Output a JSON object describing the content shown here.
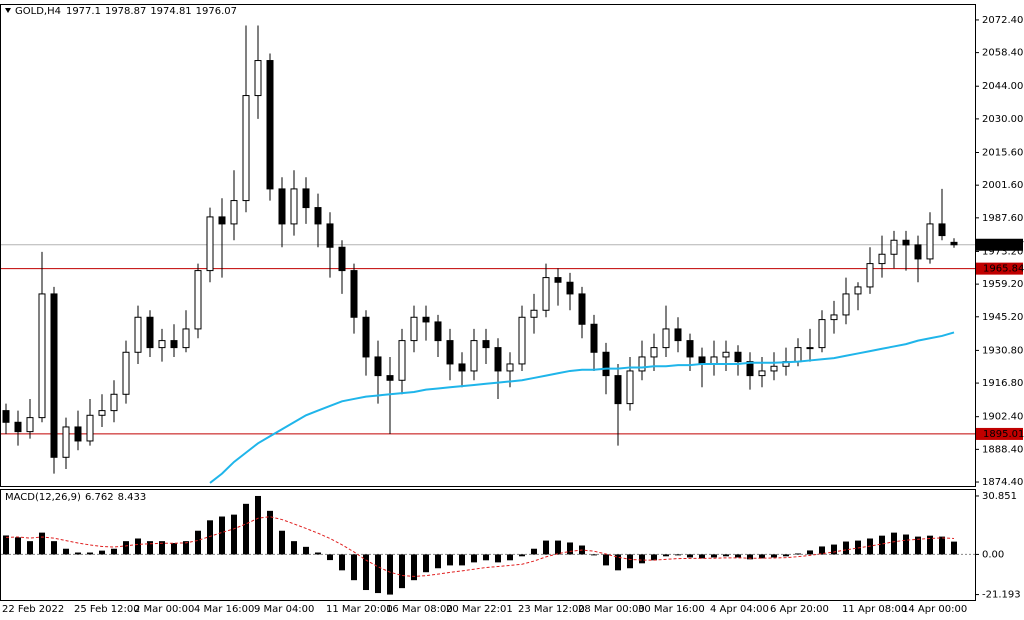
{
  "chart_data": [
    {
      "type": "candlestick",
      "title": "GOLD,H4",
      "color": "#000000",
      "categories": [
        "22 Feb 2022",
        null,
        null,
        null,
        null,
        null,
        "25 Feb 12:00",
        null,
        null,
        null,
        null,
        "2 Mar 00:00",
        null,
        null,
        null,
        null,
        "4 Mar 16:00",
        null,
        null,
        null,
        null,
        "9 Mar 04:00",
        null,
        null,
        null,
        null,
        null,
        "11 Mar 20:00",
        null,
        null,
        null,
        null,
        "16 Mar 08:00",
        null,
        null,
        null,
        null,
        "20 Mar 22:01",
        null,
        null,
        null,
        null,
        null,
        "23 Mar 12:00",
        null,
        null,
        null,
        null,
        "28 Mar 00:00",
        null,
        null,
        null,
        null,
        "30 Mar 16:00",
        null,
        null,
        null,
        null,
        null,
        "4 Apr 04:00",
        null,
        null,
        null,
        null,
        "6 Apr 20:00",
        null,
        null,
        null,
        null,
        null,
        "11 Apr 08:00",
        null,
        null,
        null,
        null,
        "14 Apr 00:00",
        null,
        null,
        null,
        null
      ],
      "ohlc": [
        [
          1905,
          1908,
          1895,
          1900
        ],
        [
          1900,
          1905,
          1890,
          1896
        ],
        [
          1896,
          1910,
          1893,
          1902
        ],
        [
          1902,
          1973,
          1900,
          1955
        ],
        [
          1955,
          1958,
          1878,
          1885
        ],
        [
          1885,
          1902,
          1880,
          1898
        ],
        [
          1898,
          1905,
          1888,
          1892
        ],
        [
          1892,
          1910,
          1890,
          1903
        ],
        [
          1903,
          1912,
          1898,
          1905
        ],
        [
          1905,
          1918,
          1900,
          1912
        ],
        [
          1912,
          1935,
          1908,
          1930
        ],
        [
          1930,
          1950,
          1925,
          1945
        ],
        [
          1945,
          1948,
          1928,
          1932
        ],
        [
          1932,
          1940,
          1926,
          1935
        ],
        [
          1935,
          1942,
          1928,
          1932
        ],
        [
          1932,
          1948,
          1930,
          1940
        ],
        [
          1940,
          1968,
          1936,
          1965
        ],
        [
          1965,
          1992,
          1960,
          1988
        ],
        [
          1988,
          1996,
          1962,
          1985
        ],
        [
          1985,
          2008,
          1978,
          1995
        ],
        [
          1995,
          2070,
          1990,
          2040
        ],
        [
          2040,
          2070,
          2030,
          2055
        ],
        [
          2055,
          2058,
          1995,
          2000
        ],
        [
          2000,
          2005,
          1975,
          1985
        ],
        [
          1985,
          2008,
          1980,
          2000
        ],
        [
          2000,
          2005,
          1985,
          1992
        ],
        [
          1992,
          1998,
          1975,
          1985
        ],
        [
          1985,
          1990,
          1962,
          1975
        ],
        [
          1975,
          1978,
          1955,
          1965
        ],
        [
          1965,
          1968,
          1938,
          1945
        ],
        [
          1945,
          1948,
          1920,
          1928
        ],
        [
          1928,
          1935,
          1908,
          1920
        ],
        [
          1920,
          1928,
          1895,
          1918
        ],
        [
          1918,
          1940,
          1912,
          1935
        ],
        [
          1935,
          1950,
          1930,
          1945
        ],
        [
          1945,
          1950,
          1935,
          1943
        ],
        [
          1943,
          1946,
          1928,
          1935
        ],
        [
          1935,
          1940,
          1918,
          1925
        ],
        [
          1925,
          1930,
          1915,
          1922
        ],
        [
          1922,
          1940,
          1918,
          1935
        ],
        [
          1935,
          1940,
          1925,
          1932
        ],
        [
          1932,
          1936,
          1910,
          1922
        ],
        [
          1922,
          1930,
          1915,
          1925
        ],
        [
          1925,
          1950,
          1922,
          1945
        ],
        [
          1945,
          1955,
          1938,
          1948
        ],
        [
          1948,
          1968,
          1945,
          1962
        ],
        [
          1962,
          1966,
          1950,
          1960
        ],
        [
          1960,
          1964,
          1948,
          1955
        ],
        [
          1955,
          1958,
          1936,
          1942
        ],
        [
          1942,
          1946,
          1922,
          1930
        ],
        [
          1930,
          1934,
          1912,
          1920
        ],
        [
          1920,
          1925,
          1890,
          1908
        ],
        [
          1908,
          1928,
          1905,
          1922
        ],
        [
          1922,
          1935,
          1918,
          1928
        ],
        [
          1928,
          1938,
          1922,
          1932
        ],
        [
          1932,
          1950,
          1928,
          1940
        ],
        [
          1940,
          1945,
          1930,
          1935
        ],
        [
          1935,
          1938,
          1922,
          1928
        ],
        [
          1928,
          1932,
          1915,
          1925
        ],
        [
          1925,
          1935,
          1920,
          1928
        ],
        [
          1928,
          1935,
          1922,
          1930
        ],
        [
          1930,
          1933,
          1920,
          1926
        ],
        [
          1926,
          1930,
          1914,
          1920
        ],
        [
          1920,
          1928,
          1915,
          1922
        ],
        [
          1922,
          1930,
          1918,
          1924
        ],
        [
          1924,
          1932,
          1920,
          1926
        ],
        [
          1926,
          1936,
          1924,
          1932
        ],
        [
          1932,
          1940,
          1926,
          1932
        ],
        [
          1932,
          1948,
          1930,
          1944
        ],
        [
          1944,
          1952,
          1938,
          1946
        ],
        [
          1946,
          1962,
          1942,
          1955
        ],
        [
          1955,
          1960,
          1948,
          1958
        ],
        [
          1958,
          1975,
          1955,
          1968
        ],
        [
          1968,
          1980,
          1962,
          1972
        ],
        [
          1972,
          1982,
          1966,
          1978
        ],
        [
          1978,
          1982,
          1965,
          1976
        ],
        [
          1976,
          1980,
          1960,
          1970
        ],
        [
          1970,
          1990,
          1968,
          1985
        ],
        [
          1985,
          2000,
          1978,
          1980
        ],
        [
          1977.1,
          1978.87,
          1974.81,
          1976.07
        ]
      ],
      "ma_color": "#1fb5ea",
      "ma_values": [
        null,
        null,
        null,
        null,
        null,
        null,
        null,
        null,
        null,
        null,
        null,
        null,
        null,
        null,
        null,
        null,
        null,
        1874,
        1878,
        1883,
        1887,
        1891,
        1894,
        1897,
        1900,
        1903,
        1905,
        1907,
        1909,
        1910,
        1911,
        1911.5,
        1912,
        1912.5,
        1913,
        1914,
        1914.5,
        1915,
        1915.5,
        1916,
        1916.5,
        1917,
        1917.5,
        1918,
        1919,
        1920,
        1921,
        1922,
        1922.5,
        1922.5,
        1923,
        1923,
        1923.5,
        1923.5,
        1924,
        1924,
        1924.5,
        1924.5,
        1925,
        1925,
        1925,
        1925,
        1925.5,
        1925.5,
        1925.5,
        1925.7,
        1926,
        1926.5,
        1927,
        1927.5,
        1928.5,
        1929.5,
        1930.5,
        1931.5,
        1932.5,
        1933.5,
        1935,
        1936,
        1937,
        1938.5
      ],
      "hlines": [
        {
          "value": 1965.84,
          "label": "1965.84",
          "color": "#c00000"
        },
        {
          "value": 1895.01,
          "label": "1895.01",
          "color": "#c00000"
        }
      ],
      "price_line_color": "#b4b4b4",
      "ylim": [
        1872.7,
        2078.8
      ],
      "yticks": [
        {
          "value": 2072.4,
          "label": "2072.40"
        },
        {
          "value": 2058.4,
          "label": "2058.40"
        },
        {
          "value": 2044,
          "label": "2044.00"
        },
        {
          "value": 2030,
          "label": "2030.00"
        },
        {
          "value": 2015.6,
          "label": "2015.60"
        },
        {
          "value": 2001.6,
          "label": "2001.60"
        },
        {
          "value": 1987.6,
          "label": "1987.60"
        },
        {
          "value": 1973.2,
          "label": "1973.20"
        },
        {
          "value": 1959.2,
          "label": "1959.20"
        },
        {
          "value": 1945.2,
          "label": "1945.20"
        },
        {
          "value": 1930.8,
          "label": "1930.80"
        },
        {
          "value": 1916.8,
          "label": "1916.80"
        },
        {
          "value": 1902.4,
          "label": "1902.40"
        },
        {
          "value": 1888.4,
          "label": "1888.40"
        },
        {
          "value": 1874.4,
          "label": "1874.40"
        }
      ]
    },
    {
      "type": "macd",
      "title": "MACD(12,26,9)",
      "series": [
        {
          "color": "#000000",
          "values": [
            10,
            9,
            7,
            11.5,
            7,
            3,
            1,
            1,
            2,
            3,
            7,
            8.4,
            7,
            7,
            6,
            7,
            12.5,
            18,
            20,
            21,
            26.7,
            30.851,
            23,
            12.5,
            7,
            4,
            1,
            -3,
            -8.4,
            -13.6,
            -18.8,
            -20.4,
            -21.193,
            -17.8,
            -13.6,
            -9.4,
            -7.3,
            -5.8,
            -5.8,
            -4.2,
            -3.1,
            -4.2,
            -3.1,
            -1,
            3,
            7.3,
            7.3,
            6.3,
            4.7,
            -0.5,
            -5.8,
            -8.4,
            -7.3,
            -4.7,
            -3.1,
            -1,
            -0.5,
            -1.6,
            -2.1,
            -1.6,
            -1,
            -1.6,
            -2.6,
            -2.1,
            -1.6,
            -1,
            0.5,
            2.1,
            4.2,
            5.2,
            6.8,
            7.3,
            8.4,
            9.9,
            11.5,
            10.5,
            9.4,
            9.9,
            9.4,
            6.762
          ]
        },
        {
          "color": "#e02020",
          "values": [
            9,
            9.2,
            8.6,
            9.2,
            8.6,
            7.3,
            6,
            5,
            4.2,
            3.9,
            4.5,
            5.3,
            5.6,
            5.9,
            5.9,
            6.1,
            7.4,
            9.5,
            11.6,
            13.5,
            16.1,
            19.1,
            19.9,
            18.4,
            16.1,
            13.7,
            11.2,
            8.4,
            5.1,
            1.3,
            -3,
            -6.5,
            -9.4,
            -11.1,
            -11.6,
            -11.2,
            -10.4,
            -9.5,
            -8.7,
            -7.8,
            -6.9,
            -6.4,
            -5.8,
            -5.2,
            -3.5,
            -1.3,
            0.4,
            1.6,
            2.3,
            1.7,
            0.2,
            -1.5,
            -2.6,
            -3,
            -3,
            -2.6,
            -2.2,
            -2.1,
            -2.1,
            -2,
            -1.8,
            -1.8,
            -2,
            -2,
            -1.9,
            -1.7,
            -1.2,
            -0.5,
            0.4,
            1.3,
            2.4,
            3.4,
            4.4,
            5.5,
            6.7,
            7.5,
            8,
            8.4,
            8.7,
            8.433
          ]
        }
      ],
      "ylim": [
        -24.06,
        34.0
      ],
      "yticks": [
        30.851,
        {
          "value": 0,
          "label": "0.00"
        },
        -21.193
      ]
    }
  ]
}
